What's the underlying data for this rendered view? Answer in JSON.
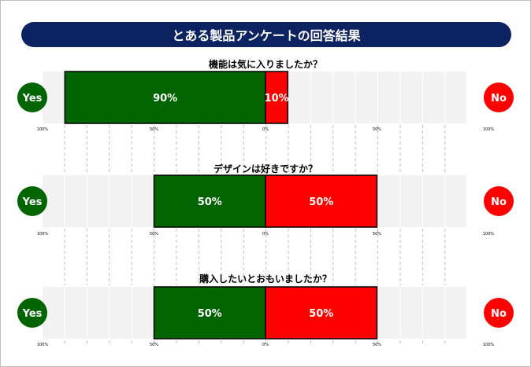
{
  "title": "とある製品アンケートの回答結果",
  "colors": {
    "title_bg": "#0d2260",
    "yes": "#006400",
    "no": "#ff0000",
    "track": "#f2f2f2",
    "label_text": "#ffffff"
  },
  "chart_data": [
    {
      "type": "bar",
      "orientation": "horizontal-diverging",
      "title": "機能は気に入りましたか？",
      "series": [
        {
          "name": "Yes",
          "value": 90,
          "label": "90%"
        },
        {
          "name": "No",
          "value": 10,
          "label": "10%"
        }
      ],
      "xlim": [
        -100,
        100
      ],
      "ticks": [
        "100%",
        "50%",
        "0%",
        "50%",
        "100%"
      ],
      "grid": true
    },
    {
      "type": "bar",
      "orientation": "horizontal-diverging",
      "title": "デザインは好きですか？",
      "series": [
        {
          "name": "Yes",
          "value": 50,
          "label": "50%"
        },
        {
          "name": "No",
          "value": 50,
          "label": "50%"
        }
      ],
      "xlim": [
        -100,
        100
      ],
      "ticks": [
        "100%",
        "50%",
        "0%",
        "50%",
        "100%"
      ],
      "grid": true
    },
    {
      "type": "bar",
      "orientation": "horizontal-diverging",
      "title": "購入したいとおもいましたか？",
      "series": [
        {
          "name": "Yes",
          "value": 50,
          "label": "50%"
        },
        {
          "name": "No",
          "value": 50,
          "label": "50%"
        }
      ],
      "xlim": [
        -100,
        100
      ],
      "ticks": [
        "100%",
        "50%",
        "0%",
        "50%",
        "100%"
      ],
      "grid": true
    }
  ]
}
